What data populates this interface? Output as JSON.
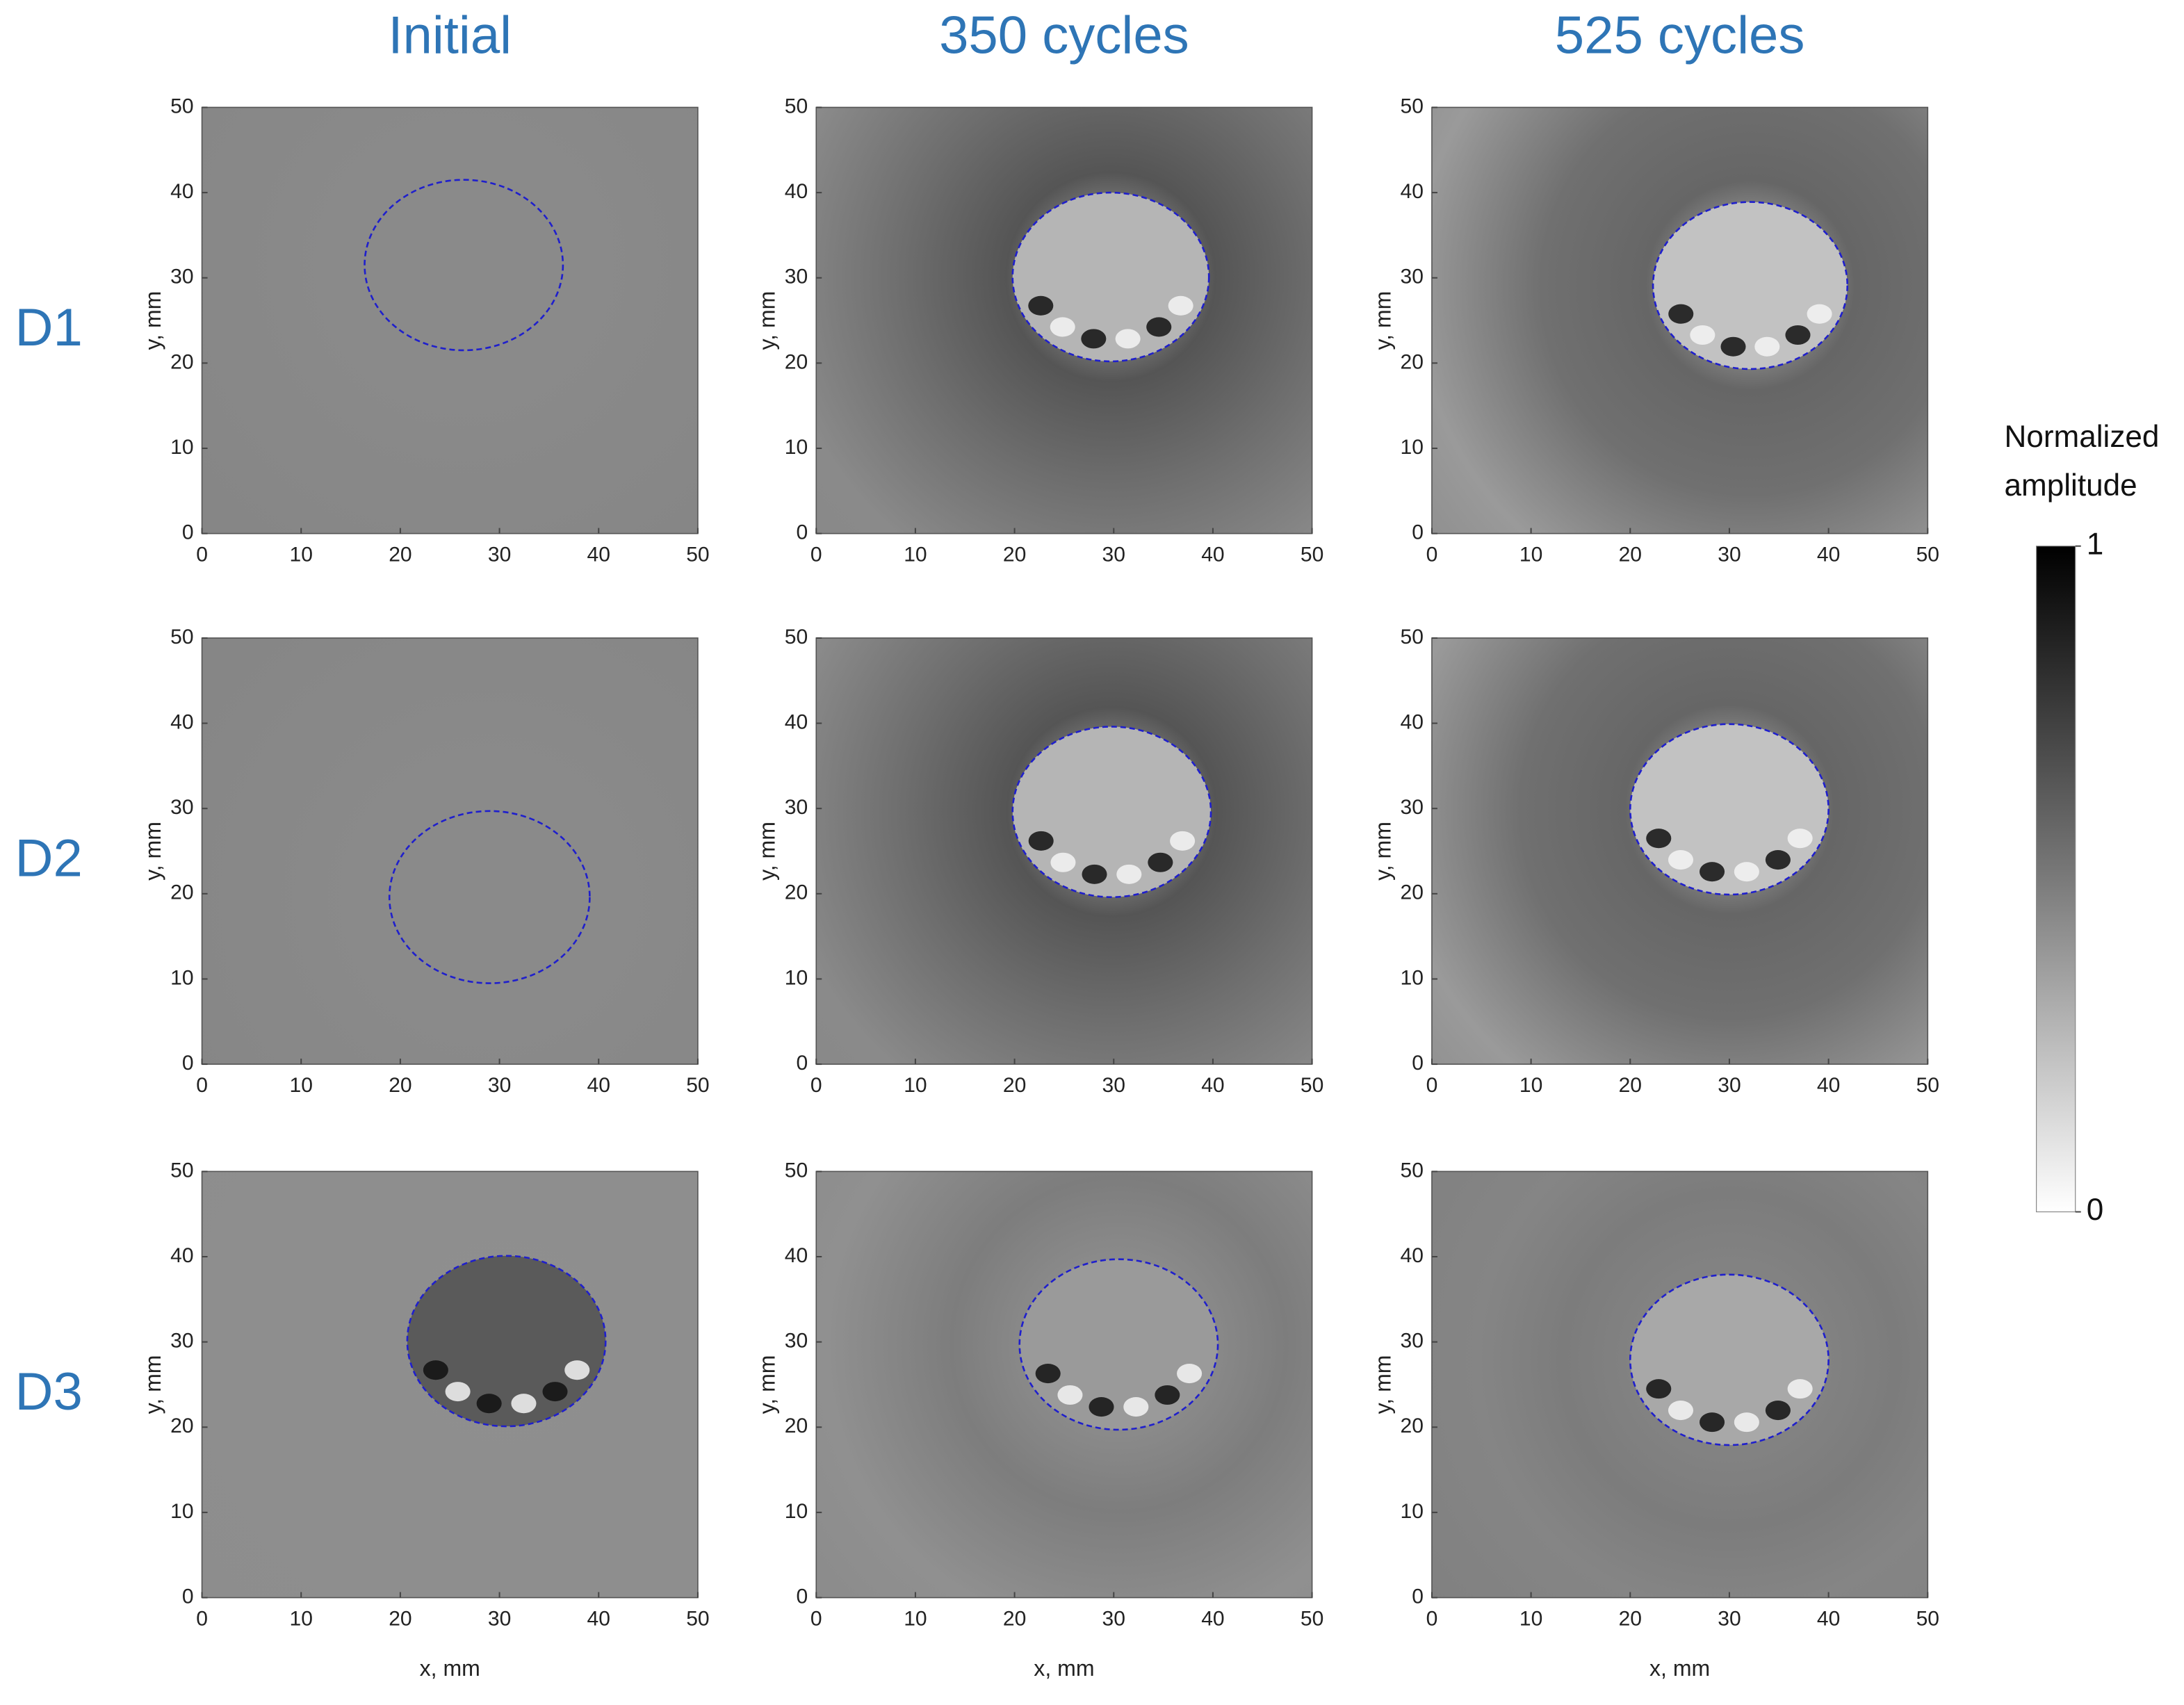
{
  "column_titles": [
    "Initial",
    "350 cycles",
    "525 cycles"
  ],
  "row_labels": [
    "D1",
    "D2",
    "D3"
  ],
  "colorbar": {
    "label": [
      "Normalized",
      "amplitude"
    ],
    "lim": [
      0,
      1
    ],
    "ticks": [
      0,
      1
    ]
  },
  "chart_data": [
    {
      "type": "image",
      "ylabel": "y, mm",
      "xlim": [
        0,
        50
      ],
      "ylim": [
        0,
        50
      ],
      "xticks": [
        0,
        10,
        20,
        30,
        40,
        50
      ],
      "yticks": [
        0,
        10,
        20,
        30,
        40,
        50
      ],
      "circle": {
        "x": 26.4,
        "y": 31.5,
        "r": 10
      }
    },
    {
      "type": "image",
      "ylabel": "y, mm",
      "xlim": [
        0,
        50
      ],
      "ylim": [
        0,
        50
      ],
      "xticks": [
        0,
        10,
        20,
        30,
        40,
        50
      ],
      "yticks": [
        0,
        10,
        20,
        30,
        40,
        50
      ],
      "circle": {
        "x": 29.7,
        "y": 30.1,
        "r": 9.9
      }
    },
    {
      "type": "image",
      "ylabel": "y, mm",
      "xlim": [
        0,
        50
      ],
      "ylim": [
        0,
        50
      ],
      "xticks": [
        0,
        10,
        20,
        30,
        40,
        50
      ],
      "yticks": [
        0,
        10,
        20,
        30,
        40,
        50
      ],
      "circle": {
        "x": 32.1,
        "y": 29.1,
        "r": 9.8
      }
    },
    {
      "type": "image",
      "ylabel": "y, mm",
      "xlim": [
        0,
        50
      ],
      "ylim": [
        0,
        50
      ],
      "xticks": [
        0,
        10,
        20,
        30,
        40,
        50
      ],
      "yticks": [
        0,
        10,
        20,
        30,
        40,
        50
      ],
      "circle": {
        "x": 29,
        "y": 19.6,
        "r": 10.1
      }
    },
    {
      "type": "image",
      "ylabel": "y, mm",
      "xlim": [
        0,
        50
      ],
      "ylim": [
        0,
        50
      ],
      "xticks": [
        0,
        10,
        20,
        30,
        40,
        50
      ],
      "yticks": [
        0,
        10,
        20,
        30,
        40,
        50
      ],
      "circle": {
        "x": 29.8,
        "y": 29.6,
        "r": 10
      }
    },
    {
      "type": "image",
      "ylabel": "y, mm",
      "xlim": [
        0,
        50
      ],
      "ylim": [
        0,
        50
      ],
      "xticks": [
        0,
        10,
        20,
        30,
        40,
        50
      ],
      "yticks": [
        0,
        10,
        20,
        30,
        40,
        50
      ],
      "circle": {
        "x": 30,
        "y": 29.9,
        "r": 10
      }
    },
    {
      "type": "image",
      "xlabel": "x, mm",
      "ylabel": "y, mm",
      "xlim": [
        0,
        50
      ],
      "ylim": [
        0,
        50
      ],
      "xticks": [
        0,
        10,
        20,
        30,
        40,
        50
      ],
      "yticks": [
        0,
        10,
        20,
        30,
        40,
        50
      ],
      "circle": {
        "x": 30.7,
        "y": 30.1,
        "r": 10
      }
    },
    {
      "type": "image",
      "xlabel": "x, mm",
      "ylabel": "y, mm",
      "xlim": [
        0,
        50
      ],
      "ylim": [
        0,
        50
      ],
      "xticks": [
        0,
        10,
        20,
        30,
        40,
        50
      ],
      "yticks": [
        0,
        10,
        20,
        30,
        40,
        50
      ],
      "circle": {
        "x": 30.5,
        "y": 29.7,
        "r": 10
      }
    },
    {
      "type": "image",
      "xlabel": "x, mm",
      "ylabel": "y, mm",
      "xlim": [
        0,
        50
      ],
      "ylim": [
        0,
        50
      ],
      "xticks": [
        0,
        10,
        20,
        30,
        40,
        50
      ],
      "yticks": [
        0,
        10,
        20,
        30,
        40,
        50
      ],
      "circle": {
        "x": 30,
        "y": 27.9,
        "r": 10
      }
    }
  ]
}
